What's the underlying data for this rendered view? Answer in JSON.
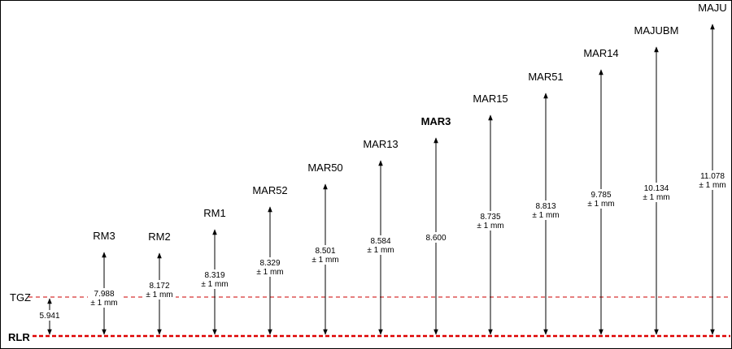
{
  "reference_lines": {
    "tgz": {
      "label": "TGZ",
      "color": "#cc0000"
    },
    "rlr": {
      "label": "RLR",
      "color": "#dd0000"
    }
  },
  "tgz_value": "5.941",
  "tolerance": "± 1 mm",
  "benchmarks": [
    {
      "name": "RM3",
      "value": "7.988",
      "tolerance": true,
      "bold": false,
      "color": "#000000"
    },
    {
      "name": "RM2",
      "value": "8.172",
      "tolerance": true,
      "bold": false,
      "color": "#000000"
    },
    {
      "name": "RM1",
      "value": "8.319",
      "tolerance": true,
      "bold": false,
      "color": "#000000"
    },
    {
      "name": "MAR52",
      "value": "8.329",
      "tolerance": true,
      "bold": false,
      "color": "#000000"
    },
    {
      "name": "MAR50",
      "value": "8.501",
      "tolerance": true,
      "bold": false,
      "color": "#000000"
    },
    {
      "name": "MAR13",
      "value": "8.584",
      "tolerance": true,
      "bold": false,
      "color": "#000000"
    },
    {
      "name": "MAR3",
      "value": "8.600",
      "tolerance": false,
      "bold": true,
      "color": "#000000"
    },
    {
      "name": "MAR15",
      "value": "8.735",
      "tolerance": true,
      "bold": false,
      "color": "#000000"
    },
    {
      "name": "MAR51",
      "value": "8.813",
      "tolerance": true,
      "bold": false,
      "color": "#000000"
    },
    {
      "name": "MAR14",
      "value": "9.785",
      "tolerance": true,
      "bold": false,
      "color": "#000000"
    },
    {
      "name": "MAJUBM",
      "value": "10.134",
      "tolerance": true,
      "bold": false,
      "color": "#000000"
    },
    {
      "name": "MAJU",
      "value": "11.078",
      "tolerance": true,
      "bold": false,
      "color": "#dd0000"
    }
  ]
}
